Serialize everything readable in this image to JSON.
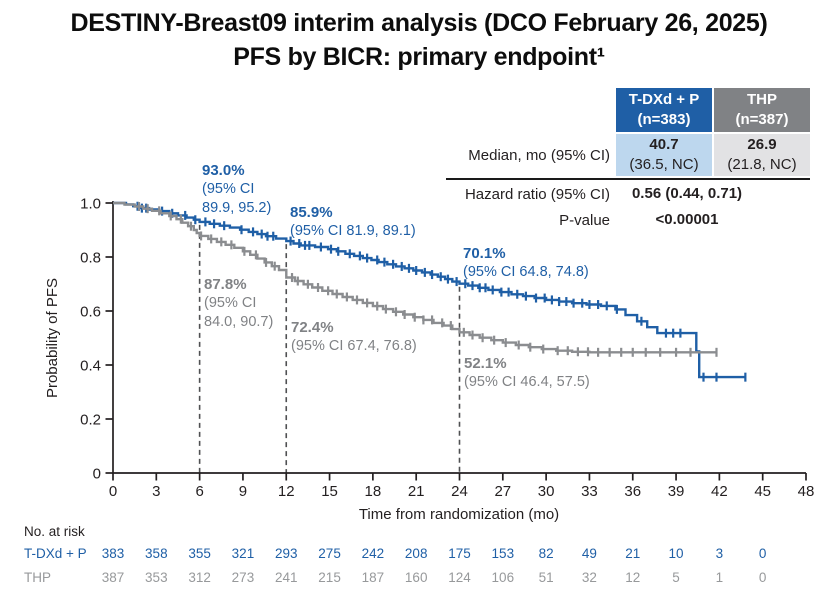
{
  "title": {
    "line1": "DESTINY-Breast09 interim analysis (DCO February 26, 2025)",
    "line2": "PFS by BICR: primary endpoint¹"
  },
  "colors": {
    "tdxd_blue": "#1F5FA6",
    "thp_gray": "#8B8D90",
    "tdxd_light_blue": "#BDD7EE",
    "thp_header_gray": "#808285",
    "thp_light_gray": "#E2E2E4",
    "annotation_gray": "#808285",
    "at_risk_gray": "#97999B",
    "dashed_line": "#4F5052",
    "axis_black": "#231F20"
  },
  "stats_table": {
    "col_tdxd": {
      "name": "T-DXd + P",
      "n": "(n=383)"
    },
    "col_thp": {
      "name": "THP",
      "n": "(n=387)"
    },
    "median_label": "Median, mo (95% CI)",
    "median_tdxd": {
      "value": "40.7",
      "ci": "(36.5, NC)"
    },
    "median_thp": {
      "value": "26.9",
      "ci": "(21.8, NC)"
    },
    "hr_label": "Hazard ratio (95% CI)",
    "hr_value": "0.56 (0.44, 0.71)",
    "p_label": "P-value",
    "p_value": "<0.00001"
  },
  "chart_data": {
    "type": "line",
    "subtype": "kaplan-meier-step",
    "title": "",
    "x_axis": {
      "label": "Time from randomization (mo)",
      "range": [
        0,
        48
      ],
      "ticks": [
        0,
        3,
        6,
        9,
        12,
        15,
        18,
        21,
        24,
        27,
        30,
        33,
        36,
        39,
        42,
        45,
        48
      ]
    },
    "y_axis": {
      "label": "Probability of PFS",
      "range": [
        0,
        1.0
      ],
      "ticks": [
        1.0,
        0.8,
        0.6,
        0.4,
        0.2,
        0
      ],
      "tick_labels": [
        "1.0",
        "0.8",
        "0.6",
        "0.4",
        "0.2",
        "0"
      ]
    },
    "dashed_lines": [
      {
        "x": 6,
        "top": 0.93
      },
      {
        "x": 12,
        "top": 0.859
      },
      {
        "x": 24,
        "top": 0.701
      }
    ],
    "annotations": [
      {
        "series": "T-DXd + P",
        "at_month": 6,
        "pct": "93.0%",
        "ci": "(95% CI\n89.9, 95.2)"
      },
      {
        "series": "T-DXd + P",
        "at_month": 12,
        "pct": "85.9%",
        "ci": "(95% CI 81.9, 89.1)"
      },
      {
        "series": "T-DXd + P",
        "at_month": 24,
        "pct": "70.1%",
        "ci": "(95% CI 64.8, 74.8)"
      },
      {
        "series": "THP",
        "at_month": 6,
        "pct": "87.8%",
        "ci": "(95% CI\n84.0, 90.7)"
      },
      {
        "series": "THP",
        "at_month": 12,
        "pct": "72.4%",
        "ci": "(95% CI 67.4, 76.8)"
      },
      {
        "series": "THP",
        "at_month": 24,
        "pct": "52.1%",
        "ci": "(95% CI 46.4, 57.5)"
      }
    ],
    "series": [
      {
        "id": "tdxd",
        "name": "T-DXd + P",
        "color": "#1F5FA6",
        "end": 43.8,
        "steps": [
          [
            0,
            1.0
          ],
          [
            0.9,
            0.995
          ],
          [
            1.4,
            0.988
          ],
          [
            1.8,
            0.981
          ],
          [
            2.5,
            0.976
          ],
          [
            3.2,
            0.97
          ],
          [
            3.9,
            0.962
          ],
          [
            4.5,
            0.954
          ],
          [
            5.1,
            0.946
          ],
          [
            5.6,
            0.938
          ],
          [
            6,
            0.93
          ],
          [
            6.7,
            0.923
          ],
          [
            7.4,
            0.916
          ],
          [
            8.1,
            0.909
          ],
          [
            8.8,
            0.901
          ],
          [
            9.4,
            0.893
          ],
          [
            10,
            0.885
          ],
          [
            10.6,
            0.877
          ],
          [
            11.3,
            0.868
          ],
          [
            12,
            0.859
          ],
          [
            12.5,
            0.85
          ],
          [
            13,
            0.843
          ],
          [
            14,
            0.837
          ],
          [
            14.9,
            0.829
          ],
          [
            15.5,
            0.821
          ],
          [
            16.1,
            0.812
          ],
          [
            16.7,
            0.804
          ],
          [
            17.3,
            0.796
          ],
          [
            17.9,
            0.789
          ],
          [
            18.4,
            0.781
          ],
          [
            19,
            0.773
          ],
          [
            19.6,
            0.765
          ],
          [
            20.2,
            0.758
          ],
          [
            20.8,
            0.75
          ],
          [
            21.4,
            0.743
          ],
          [
            22,
            0.735
          ],
          [
            22.5,
            0.727
          ],
          [
            23,
            0.718
          ],
          [
            23.5,
            0.709
          ],
          [
            24,
            0.701
          ],
          [
            24.6,
            0.694
          ],
          [
            25.3,
            0.686
          ],
          [
            26,
            0.678
          ],
          [
            26.8,
            0.67
          ],
          [
            27.6,
            0.662
          ],
          [
            28.4,
            0.655
          ],
          [
            29.2,
            0.648
          ],
          [
            30,
            0.641
          ],
          [
            30.9,
            0.635
          ],
          [
            31.8,
            0.629
          ],
          [
            32.8,
            0.624
          ],
          [
            33.8,
            0.619
          ],
          [
            34.8,
            0.606
          ],
          [
            35.5,
            0.585
          ],
          [
            36.3,
            0.562
          ],
          [
            37,
            0.54
          ],
          [
            37.7,
            0.518
          ],
          [
            40.4,
            0.45
          ],
          [
            40.6,
            0.355
          ]
        ],
        "censors": [
          1.7,
          2.0,
          2.3,
          3.4,
          4.1,
          5.0,
          5.7,
          6.4,
          7.0,
          7.7,
          8.9,
          9.7,
          10.3,
          10.7,
          11.1,
          12.3,
          12.9,
          13.3,
          13.6,
          14.4,
          15.1,
          15.6,
          16.4,
          17.1,
          17.6,
          18.3,
          18.8,
          19.4,
          20.0,
          20.5,
          21.0,
          21.6,
          22.1,
          22.7,
          23.2,
          23.8,
          24.4,
          24.9,
          25.4,
          25.8,
          26.3,
          26.9,
          27.4,
          28.0,
          28.6,
          29.3,
          29.9,
          30.4,
          30.9,
          31.4,
          31.9,
          32.5,
          33.0,
          33.6,
          34.2,
          34.9,
          36.6,
          38.3,
          38.8,
          39.3,
          40.9,
          41.8,
          43.8
        ]
      },
      {
        "id": "thp",
        "name": "THP",
        "color": "#8B8D90",
        "end": 41.8,
        "steps": [
          [
            0,
            1.0
          ],
          [
            0.8,
            0.994
          ],
          [
            1.5,
            0.987
          ],
          [
            2.1,
            0.979
          ],
          [
            2.7,
            0.971
          ],
          [
            3.3,
            0.962
          ],
          [
            3.9,
            0.952
          ],
          [
            4.4,
            0.94
          ],
          [
            4.8,
            0.927
          ],
          [
            5.2,
            0.914
          ],
          [
            5.6,
            0.9
          ],
          [
            5.8,
            0.889
          ],
          [
            6,
            0.878
          ],
          [
            6.6,
            0.867
          ],
          [
            7.2,
            0.856
          ],
          [
            7.8,
            0.845
          ],
          [
            8.4,
            0.834
          ],
          [
            9,
            0.821
          ],
          [
            9.5,
            0.808
          ],
          [
            10,
            0.794
          ],
          [
            10.5,
            0.78
          ],
          [
            11,
            0.766
          ],
          [
            11.5,
            0.752
          ],
          [
            12,
            0.724
          ],
          [
            12.6,
            0.711
          ],
          [
            13.2,
            0.699
          ],
          [
            13.8,
            0.687
          ],
          [
            14.5,
            0.675
          ],
          [
            15.2,
            0.663
          ],
          [
            15.9,
            0.652
          ],
          [
            16.6,
            0.641
          ],
          [
            17.3,
            0.63
          ],
          [
            18,
            0.618
          ],
          [
            18.7,
            0.607
          ],
          [
            19.4,
            0.597
          ],
          [
            20.1,
            0.587
          ],
          [
            20.8,
            0.577
          ],
          [
            21.5,
            0.567
          ],
          [
            22.2,
            0.556
          ],
          [
            22.9,
            0.546
          ],
          [
            23.5,
            0.533
          ],
          [
            24,
            0.521
          ],
          [
            24.7,
            0.511
          ],
          [
            25.4,
            0.501
          ],
          [
            26.2,
            0.492
          ],
          [
            27,
            0.483
          ],
          [
            27.9,
            0.474
          ],
          [
            28.8,
            0.466
          ],
          [
            29.7,
            0.459
          ],
          [
            30.7,
            0.453
          ],
          [
            31.8,
            0.449
          ],
          [
            33,
            0.447
          ]
        ],
        "censors": [
          1.8,
          2.4,
          3.2,
          4.0,
          4.7,
          5.4,
          6.1,
          6.8,
          7.5,
          8.2,
          9.1,
          9.9,
          10.6,
          11.2,
          12.4,
          12.8,
          13.5,
          14.2,
          14.9,
          15.5,
          16.2,
          16.9,
          17.6,
          18.3,
          18.9,
          19.6,
          20.2,
          20.9,
          21.5,
          22.1,
          22.8,
          23.4,
          24.3,
          24.9,
          25.6,
          26.4,
          27.2,
          28.1,
          28.9,
          29.8,
          30.8,
          31.5,
          32.2,
          32.9,
          33.6,
          34.4,
          35.2,
          36.0,
          36.9,
          37.9,
          39.0,
          40.0,
          41.8
        ]
      }
    ],
    "at_risk": {
      "label": "No. at risk",
      "times": [
        0,
        3,
        6,
        9,
        12,
        15,
        18,
        21,
        24,
        27,
        30,
        33,
        36,
        39,
        42,
        45
      ],
      "rows": [
        {
          "name": "T-DXd + P",
          "color": "#1F5FA6",
          "values": [
            383,
            358,
            355,
            321,
            293,
            275,
            242,
            208,
            175,
            153,
            82,
            49,
            21,
            10,
            3,
            0
          ]
        },
        {
          "name": "THP",
          "color": "#97999B",
          "values": [
            387,
            353,
            312,
            273,
            241,
            215,
            187,
            160,
            124,
            106,
            51,
            32,
            12,
            5,
            1,
            0
          ]
        }
      ]
    }
  }
}
